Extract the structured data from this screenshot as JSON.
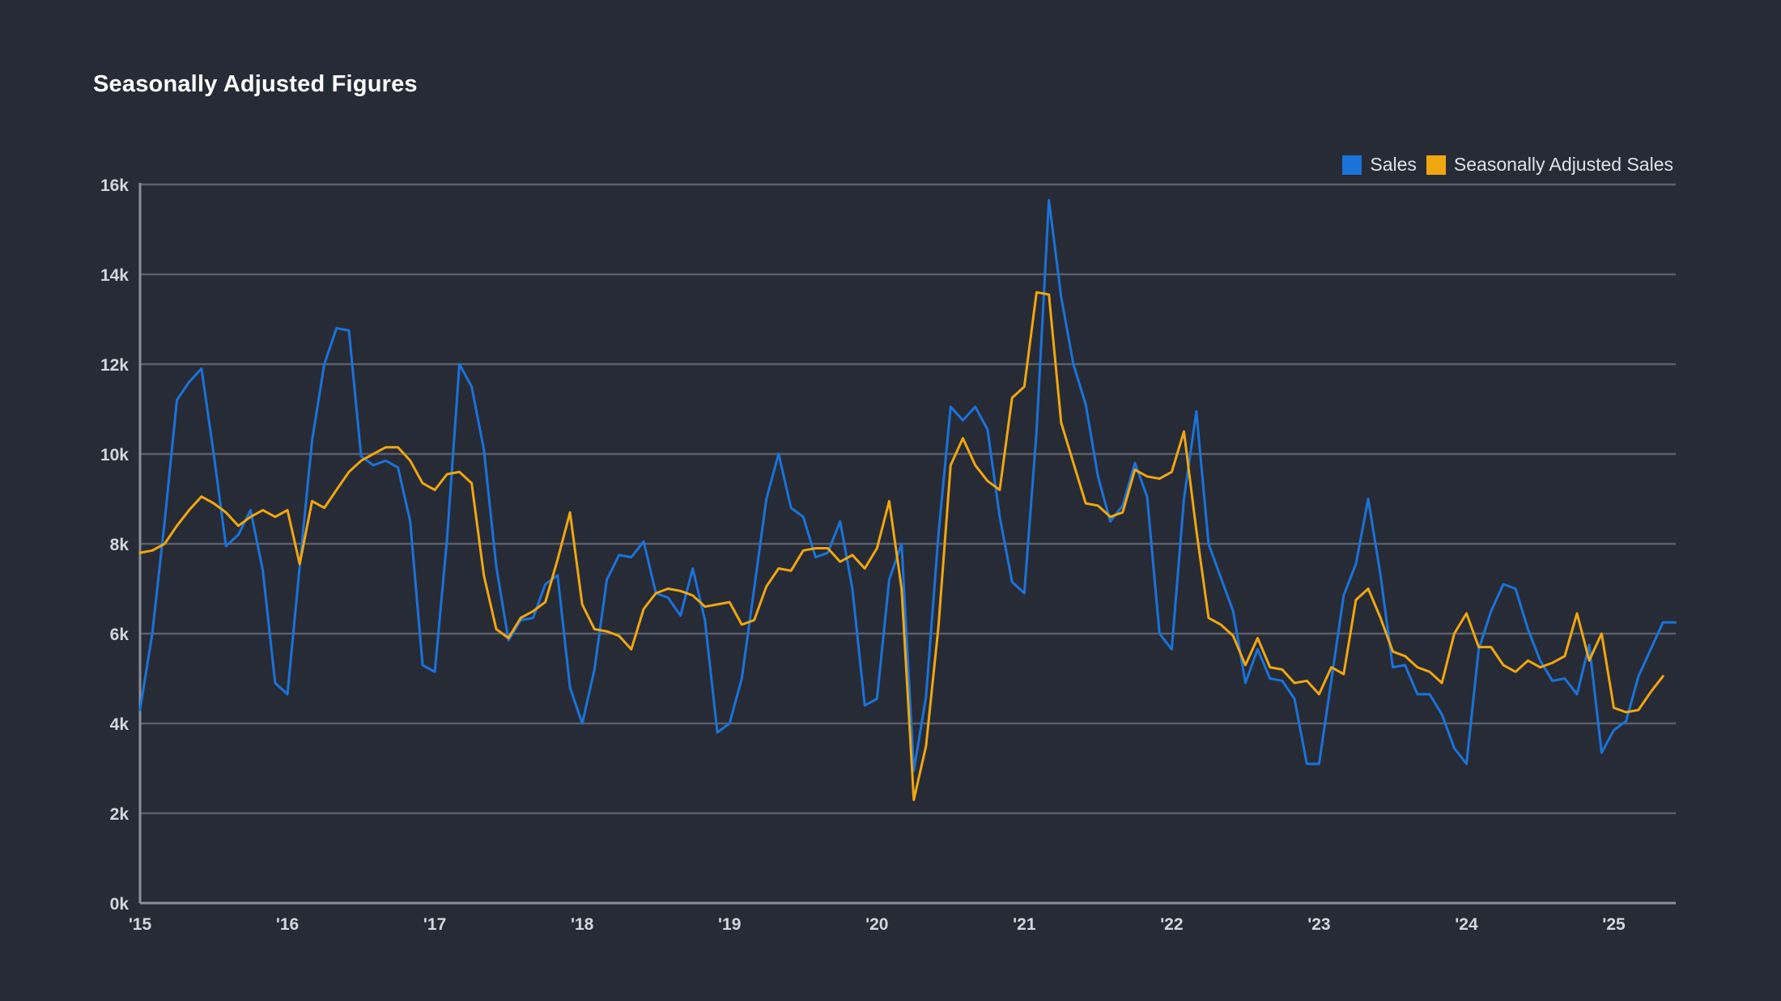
{
  "colors": {
    "background": "#272b36",
    "grid": "#5a5f6b",
    "axis": "#8a8f9a"
  },
  "chart_data": {
    "type": "line",
    "title": "Seasonally Adjusted Figures",
    "xlabel": "",
    "ylabel": "",
    "ylim": [
      0,
      16000
    ],
    "xlim": [
      2015.0,
      2025.42
    ],
    "yticks": [
      {
        "value": 0,
        "label": "0k"
      },
      {
        "value": 2000,
        "label": "2k"
      },
      {
        "value": 4000,
        "label": "4k"
      },
      {
        "value": 6000,
        "label": "6k"
      },
      {
        "value": 8000,
        "label": "8k"
      },
      {
        "value": 10000,
        "label": "10k"
      },
      {
        "value": 12000,
        "label": "12k"
      },
      {
        "value": 14000,
        "label": "14k"
      },
      {
        "value": 16000,
        "label": "16k"
      }
    ],
    "xticks": [
      {
        "value": 2015,
        "label": "'15"
      },
      {
        "value": 2016,
        "label": "'16"
      },
      {
        "value": 2017,
        "label": "'17"
      },
      {
        "value": 2018,
        "label": "'18"
      },
      {
        "value": 2019,
        "label": "'19"
      },
      {
        "value": 2020,
        "label": "'20"
      },
      {
        "value": 2021,
        "label": "'21"
      },
      {
        "value": 2022,
        "label": "'22"
      },
      {
        "value": 2023,
        "label": "'23"
      },
      {
        "value": 2024,
        "label": "'24"
      },
      {
        "value": 2025,
        "label": "'25"
      }
    ],
    "grid": true,
    "legend_position": "top-right",
    "series": [
      {
        "name": "Sales",
        "color": "#1a73d9",
        "values": [
          [
            2015.0,
            4300
          ],
          [
            2015.083,
            6000
          ],
          [
            2015.167,
            8500
          ],
          [
            2015.25,
            11200
          ],
          [
            2015.333,
            11600
          ],
          [
            2015.417,
            11900
          ],
          [
            2015.5,
            10000
          ],
          [
            2015.583,
            7950
          ],
          [
            2015.667,
            8200
          ],
          [
            2015.75,
            8750
          ],
          [
            2015.833,
            7400
          ],
          [
            2015.917,
            4900
          ],
          [
            2016.0,
            4650
          ],
          [
            2016.083,
            7500
          ],
          [
            2016.167,
            10300
          ],
          [
            2016.25,
            12000
          ],
          [
            2016.333,
            12800
          ],
          [
            2016.417,
            12750
          ],
          [
            2016.5,
            9950
          ],
          [
            2016.583,
            9750
          ],
          [
            2016.667,
            9850
          ],
          [
            2016.75,
            9700
          ],
          [
            2016.833,
            8500
          ],
          [
            2016.917,
            5300
          ],
          [
            2017.0,
            5150
          ],
          [
            2017.083,
            8100
          ],
          [
            2017.167,
            12000
          ],
          [
            2017.25,
            11500
          ],
          [
            2017.333,
            10100
          ],
          [
            2017.417,
            7500
          ],
          [
            2017.5,
            5850
          ],
          [
            2017.583,
            6300
          ],
          [
            2017.667,
            6350
          ],
          [
            2017.75,
            7100
          ],
          [
            2017.833,
            7300
          ],
          [
            2017.917,
            4800
          ],
          [
            2018.0,
            4000
          ],
          [
            2018.083,
            5200
          ],
          [
            2018.167,
            7200
          ],
          [
            2018.25,
            7750
          ],
          [
            2018.333,
            7700
          ],
          [
            2018.417,
            8050
          ],
          [
            2018.5,
            6900
          ],
          [
            2018.583,
            6800
          ],
          [
            2018.667,
            6400
          ],
          [
            2018.75,
            7450
          ],
          [
            2018.833,
            6300
          ],
          [
            2018.917,
            3800
          ],
          [
            2019.0,
            4000
          ],
          [
            2019.083,
            5000
          ],
          [
            2019.167,
            7000
          ],
          [
            2019.25,
            9000
          ],
          [
            2019.333,
            10000
          ],
          [
            2019.417,
            8800
          ],
          [
            2019.5,
            8600
          ],
          [
            2019.583,
            7700
          ],
          [
            2019.667,
            7800
          ],
          [
            2019.75,
            8500
          ],
          [
            2019.833,
            7000
          ],
          [
            2019.917,
            4400
          ],
          [
            2020.0,
            4550
          ],
          [
            2020.083,
            7200
          ],
          [
            2020.167,
            8000
          ],
          [
            2020.25,
            2950
          ],
          [
            2020.333,
            4600
          ],
          [
            2020.417,
            8200
          ],
          [
            2020.5,
            11050
          ],
          [
            2020.583,
            10750
          ],
          [
            2020.667,
            11050
          ],
          [
            2020.75,
            10550
          ],
          [
            2020.833,
            8600
          ],
          [
            2020.917,
            7150
          ],
          [
            2021.0,
            6900
          ],
          [
            2021.083,
            10500
          ],
          [
            2021.167,
            15650
          ],
          [
            2021.25,
            13500
          ],
          [
            2021.333,
            12000
          ],
          [
            2021.417,
            11100
          ],
          [
            2021.5,
            9500
          ],
          [
            2021.583,
            8500
          ],
          [
            2021.667,
            8850
          ],
          [
            2021.75,
            9800
          ],
          [
            2021.833,
            9050
          ],
          [
            2021.917,
            6000
          ],
          [
            2022.0,
            5650
          ],
          [
            2022.083,
            9000
          ],
          [
            2022.167,
            10950
          ],
          [
            2022.25,
            8000
          ],
          [
            2022.333,
            7250
          ],
          [
            2022.417,
            6500
          ],
          [
            2022.5,
            4900
          ],
          [
            2022.583,
            5650
          ],
          [
            2022.667,
            5000
          ],
          [
            2022.75,
            4950
          ],
          [
            2022.833,
            4550
          ],
          [
            2022.917,
            3100
          ],
          [
            2023.0,
            3100
          ],
          [
            2023.083,
            4950
          ],
          [
            2023.167,
            6850
          ],
          [
            2023.25,
            7550
          ],
          [
            2023.333,
            9000
          ],
          [
            2023.417,
            7300
          ],
          [
            2023.5,
            5250
          ],
          [
            2023.583,
            5300
          ],
          [
            2023.667,
            4650
          ],
          [
            2023.75,
            4650
          ],
          [
            2023.833,
            4200
          ],
          [
            2023.917,
            3450
          ],
          [
            2024.0,
            3100
          ],
          [
            2024.083,
            5650
          ],
          [
            2024.167,
            6500
          ],
          [
            2024.25,
            7100
          ],
          [
            2024.333,
            7000
          ],
          [
            2024.417,
            6100
          ],
          [
            2024.5,
            5400
          ],
          [
            2024.583,
            4950
          ],
          [
            2024.667,
            5000
          ],
          [
            2024.75,
            4650
          ],
          [
            2024.833,
            5750
          ],
          [
            2024.917,
            3350
          ],
          [
            2025.0,
            3850
          ],
          [
            2025.083,
            4050
          ],
          [
            2025.167,
            5050
          ],
          [
            2025.25,
            5650
          ],
          [
            2025.333,
            6250
          ],
          [
            2025.417,
            6250
          ]
        ]
      },
      {
        "name": "Seasonally Adjusted Sales",
        "color": "#f0a70f",
        "values": [
          [
            2015.0,
            7800
          ],
          [
            2015.083,
            7850
          ],
          [
            2015.167,
            8000
          ],
          [
            2015.25,
            8400
          ],
          [
            2015.333,
            8750
          ],
          [
            2015.417,
            9050
          ],
          [
            2015.5,
            8900
          ],
          [
            2015.583,
            8700
          ],
          [
            2015.667,
            8400
          ],
          [
            2015.75,
            8600
          ],
          [
            2015.833,
            8750
          ],
          [
            2015.917,
            8600
          ],
          [
            2016.0,
            8750
          ],
          [
            2016.083,
            7550
          ],
          [
            2016.167,
            8950
          ],
          [
            2016.25,
            8800
          ],
          [
            2016.333,
            9200
          ],
          [
            2016.417,
            9600
          ],
          [
            2016.5,
            9850
          ],
          [
            2016.583,
            10000
          ],
          [
            2016.667,
            10150
          ],
          [
            2016.75,
            10150
          ],
          [
            2016.833,
            9850
          ],
          [
            2016.917,
            9350
          ],
          [
            2017.0,
            9200
          ],
          [
            2017.083,
            9550
          ],
          [
            2017.167,
            9600
          ],
          [
            2017.25,
            9350
          ],
          [
            2017.333,
            7300
          ],
          [
            2017.417,
            6100
          ],
          [
            2017.5,
            5900
          ],
          [
            2017.583,
            6350
          ],
          [
            2017.667,
            6500
          ],
          [
            2017.75,
            6700
          ],
          [
            2017.833,
            7650
          ],
          [
            2017.917,
            8700
          ],
          [
            2018.0,
            6650
          ],
          [
            2018.083,
            6100
          ],
          [
            2018.167,
            6050
          ],
          [
            2018.25,
            5950
          ],
          [
            2018.333,
            5650
          ],
          [
            2018.417,
            6550
          ],
          [
            2018.5,
            6900
          ],
          [
            2018.583,
            7000
          ],
          [
            2018.667,
            6950
          ],
          [
            2018.75,
            6850
          ],
          [
            2018.833,
            6600
          ],
          [
            2018.917,
            6650
          ],
          [
            2019.0,
            6700
          ],
          [
            2019.083,
            6200
          ],
          [
            2019.167,
            6300
          ],
          [
            2019.25,
            7050
          ],
          [
            2019.333,
            7450
          ],
          [
            2019.417,
            7400
          ],
          [
            2019.5,
            7850
          ],
          [
            2019.583,
            7900
          ],
          [
            2019.667,
            7900
          ],
          [
            2019.75,
            7600
          ],
          [
            2019.833,
            7750
          ],
          [
            2019.917,
            7450
          ],
          [
            2020.0,
            7900
          ],
          [
            2020.083,
            8950
          ],
          [
            2020.167,
            7000
          ],
          [
            2020.25,
            2300
          ],
          [
            2020.333,
            3500
          ],
          [
            2020.417,
            6150
          ],
          [
            2020.5,
            9750
          ],
          [
            2020.583,
            10350
          ],
          [
            2020.667,
            9750
          ],
          [
            2020.75,
            9400
          ],
          [
            2020.833,
            9200
          ],
          [
            2020.917,
            11250
          ],
          [
            2021.0,
            11500
          ],
          [
            2021.083,
            13600
          ],
          [
            2021.167,
            13550
          ],
          [
            2021.25,
            10700
          ],
          [
            2021.333,
            9800
          ],
          [
            2021.417,
            8900
          ],
          [
            2021.5,
            8850
          ],
          [
            2021.583,
            8600
          ],
          [
            2021.667,
            8700
          ],
          [
            2021.75,
            9650
          ],
          [
            2021.833,
            9500
          ],
          [
            2021.917,
            9450
          ],
          [
            2022.0,
            9600
          ],
          [
            2022.083,
            10500
          ],
          [
            2022.167,
            8300
          ],
          [
            2022.25,
            6350
          ],
          [
            2022.333,
            6200
          ],
          [
            2022.417,
            5950
          ],
          [
            2022.5,
            5300
          ],
          [
            2022.583,
            5900
          ],
          [
            2022.667,
            5250
          ],
          [
            2022.75,
            5200
          ],
          [
            2022.833,
            4900
          ],
          [
            2022.917,
            4950
          ],
          [
            2023.0,
            4650
          ],
          [
            2023.083,
            5250
          ],
          [
            2023.167,
            5100
          ],
          [
            2023.25,
            6750
          ],
          [
            2023.333,
            7000
          ],
          [
            2023.417,
            6350
          ],
          [
            2023.5,
            5600
          ],
          [
            2023.583,
            5500
          ],
          [
            2023.667,
            5250
          ],
          [
            2023.75,
            5150
          ],
          [
            2023.833,
            4900
          ],
          [
            2023.917,
            6000
          ],
          [
            2024.0,
            6450
          ],
          [
            2024.083,
            5700
          ],
          [
            2024.167,
            5700
          ],
          [
            2024.25,
            5300
          ],
          [
            2024.333,
            5150
          ],
          [
            2024.417,
            5400
          ],
          [
            2024.5,
            5250
          ],
          [
            2024.583,
            5350
          ],
          [
            2024.667,
            5500
          ],
          [
            2024.75,
            6450
          ],
          [
            2024.833,
            5400
          ],
          [
            2024.917,
            6000
          ],
          [
            2025.0,
            4350
          ],
          [
            2025.083,
            4250
          ],
          [
            2025.167,
            4300
          ],
          [
            2025.25,
            4700
          ],
          [
            2025.333,
            5050
          ]
        ]
      }
    ]
  }
}
